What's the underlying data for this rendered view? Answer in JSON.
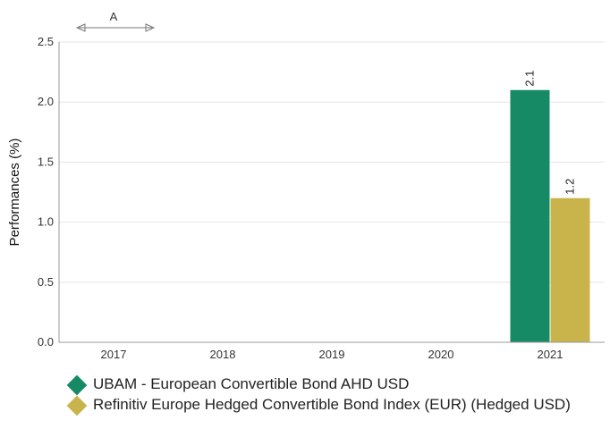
{
  "chart_data": {
    "type": "bar",
    "categories": [
      "2017",
      "2018",
      "2019",
      "2020",
      "2021"
    ],
    "series": [
      {
        "name": "UBAM - European Convertible Bond AHD USD",
        "color": "#168a65",
        "values": [
          null,
          null,
          null,
          null,
          2.1
        ]
      },
      {
        "name": "Refinitiv Europe Hedged Convertible Bond Index (EUR) (Hedged USD)",
        "color": "#c8b44a",
        "values": [
          null,
          null,
          null,
          null,
          1.2
        ]
      }
    ],
    "data_labels": [
      "2.1",
      "1.2"
    ],
    "ylabel": "Performances (%)",
    "ylim": [
      0,
      2.5
    ],
    "yticks": [
      "0.0",
      "0.5",
      "1.0",
      "1.5",
      "2.0",
      "2.5"
    ],
    "annotation": {
      "text": "A",
      "span_categories": [
        "2017"
      ]
    },
    "grid": true,
    "legend_position": "bottom-left"
  }
}
